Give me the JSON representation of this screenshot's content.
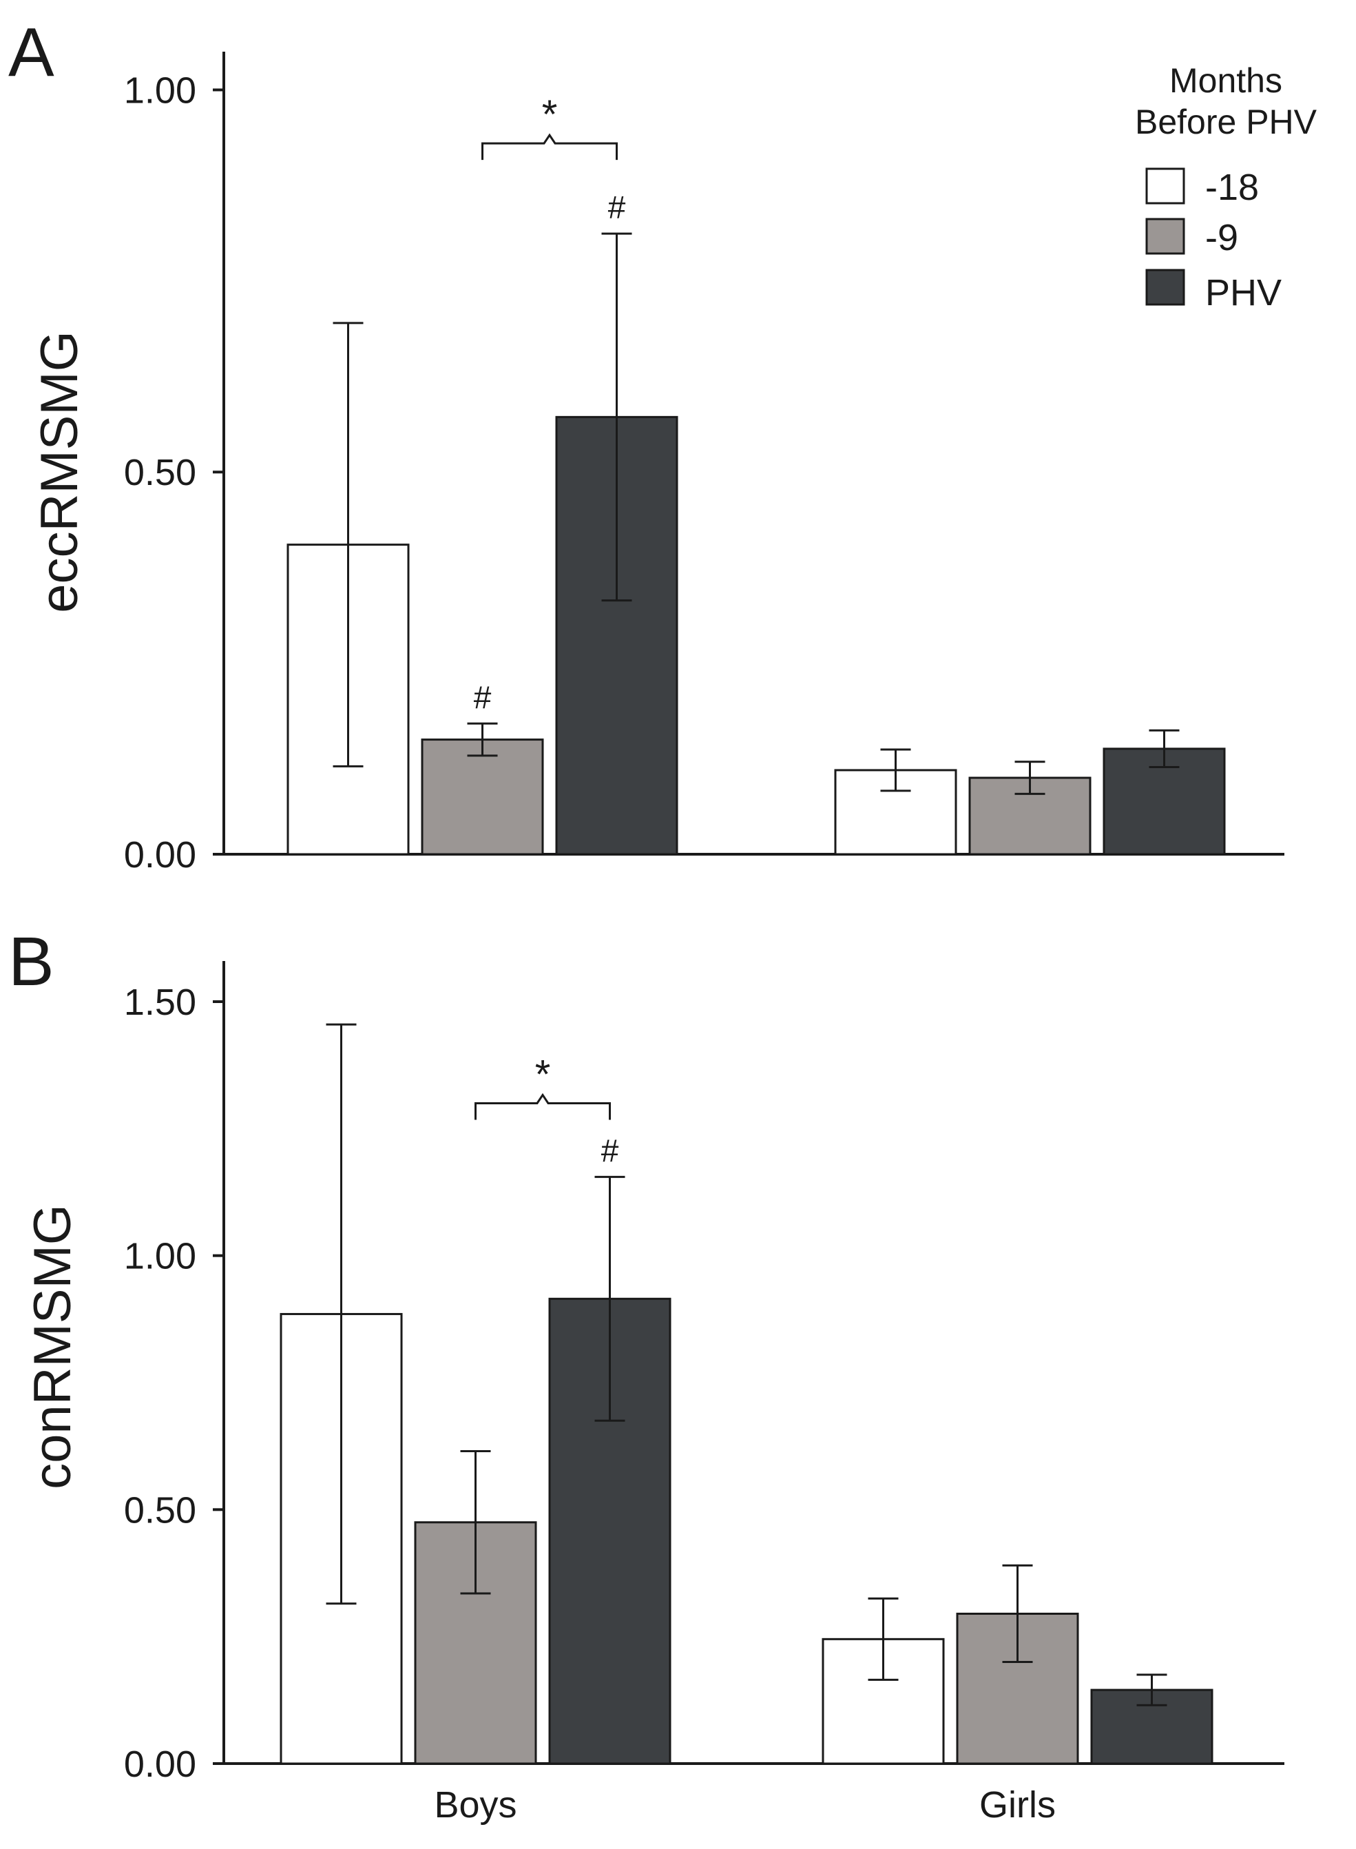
{
  "legend": {
    "title_line1": "Months",
    "title_line2": "Before PHV",
    "entries": [
      {
        "label": "-18",
        "color": "#ffffff"
      },
      {
        "label": "-9",
        "color": "#9b9694"
      },
      {
        "label": "PHV",
        "color": "#3d4043"
      }
    ]
  },
  "chart_data": [
    {
      "type": "bar",
      "panel": "A",
      "title": "",
      "xlabel": "",
      "ylabel": "eccRMSMG",
      "ylim": [
        0,
        1.05
      ],
      "yticks": [
        0,
        0.5,
        1.0
      ],
      "ytick_labels": [
        "0.00",
        "0.50",
        "1.00"
      ],
      "categories": [
        "Boys",
        "Girls"
      ],
      "show_category_labels": false,
      "series": [
        {
          "name": "-18",
          "color": "#ffffff",
          "values": [
            0.405,
            0.11
          ],
          "errors": [
            0.29,
            0.027
          ]
        },
        {
          "name": "-9",
          "color": "#9b9694",
          "values": [
            0.15,
            0.1
          ],
          "errors": [
            0.021,
            0.021
          ]
        },
        {
          "name": "PHV",
          "color": "#3d4043",
          "values": [
            0.572,
            0.138
          ],
          "errors": [
            0.24,
            0.024
          ]
        }
      ],
      "significance": [
        {
          "symbol": "#",
          "category": 0,
          "series": 1
        },
        {
          "symbol": "#",
          "category": 0,
          "series": 2
        }
      ],
      "brackets": [
        {
          "symbol": "*",
          "category": 0,
          "from_series": 1,
          "to_series": 2,
          "y": 0.93
        }
      ]
    },
    {
      "type": "bar",
      "panel": "B",
      "title": "",
      "xlabel": "",
      "ylabel": "conRMSMG",
      "ylim": [
        0,
        1.58
      ],
      "yticks": [
        0,
        0.5,
        1.0,
        1.5
      ],
      "ytick_labels": [
        "0.00",
        "0.50",
        "1.00",
        "1.50"
      ],
      "categories": [
        "Boys",
        "Girls"
      ],
      "show_category_labels": true,
      "series": [
        {
          "name": "-18",
          "color": "#ffffff",
          "values": [
            0.885,
            0.245
          ],
          "errors": [
            0.57,
            0.08
          ]
        },
        {
          "name": "-9",
          "color": "#9b9694",
          "values": [
            0.475,
            0.295
          ],
          "errors": [
            0.14,
            0.095
          ]
        },
        {
          "name": "PHV",
          "color": "#3d4043",
          "values": [
            0.915,
            0.145
          ],
          "errors": [
            0.24,
            0.03
          ]
        }
      ],
      "significance": [
        {
          "symbol": "#",
          "category": 0,
          "series": 2
        }
      ],
      "brackets": [
        {
          "symbol": "*",
          "category": 0,
          "from_series": 1,
          "to_series": 2,
          "y": 1.3
        }
      ]
    }
  ]
}
